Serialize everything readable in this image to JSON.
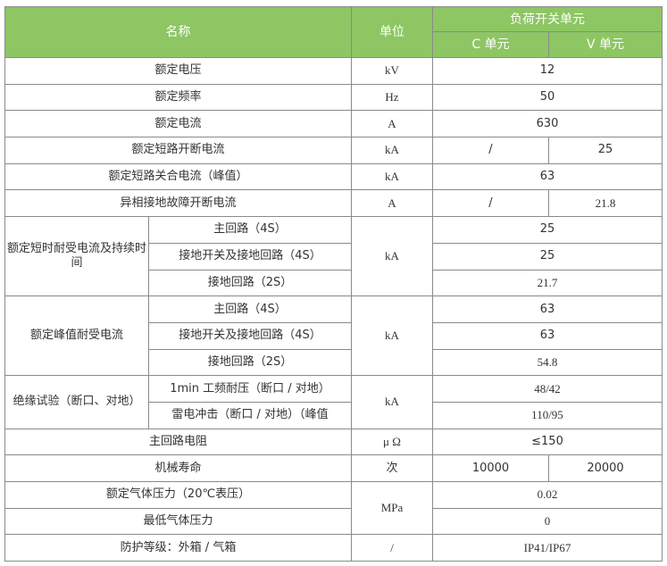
{
  "header": {
    "name": "名称",
    "unit": "单位",
    "group": "负荷开关单元",
    "c_unit": "C 单元",
    "v_unit": "V 单元"
  },
  "rows": {
    "r1": {
      "name": "额定电压",
      "unit": "kV",
      "value": "12"
    },
    "r2": {
      "name": "额定频率",
      "unit": "Hz",
      "value": "50"
    },
    "r3": {
      "name": "额定电流",
      "unit": "A",
      "value": "630"
    },
    "r4": {
      "name": "额定短路开断电流",
      "unit": "kA",
      "c": "/",
      "v": "25"
    },
    "r5": {
      "name": "额定短路关合电流（峰值）",
      "unit": "kA",
      "value": "63"
    },
    "r6": {
      "name": "异相接地故障开断电流",
      "unit": "A",
      "c": "/",
      "v": "21.8"
    },
    "g1": {
      "name": "额定短时耐受电流及持续时间",
      "unit": "kA",
      "sub": [
        {
          "name": "主回路（4S）",
          "value": "25"
        },
        {
          "name": "接地开关及接地回路（4S）",
          "value": "25"
        },
        {
          "name": "接地回路（2S）",
          "value": "21.7"
        }
      ]
    },
    "g2": {
      "name": "额定峰值耐受电流",
      "unit": "kA",
      "sub": [
        {
          "name": "主回路（4S）",
          "value": "63"
        },
        {
          "name": "接地开关及接地回路（4S）",
          "value": "63"
        },
        {
          "name": "接地回路（2S）",
          "value": "54.8"
        }
      ]
    },
    "g3": {
      "name": "绝缘试验（断口、对地）",
      "unit": "kA",
      "sub": [
        {
          "name": "1min 工频耐压（断口 / 对地）",
          "value": "48/42"
        },
        {
          "name": "雷电冲击（断口 / 对地）（峰值",
          "value": "110/95"
        }
      ]
    },
    "r7": {
      "name": "主回路电阻",
      "unit": "μ Ω",
      "value": "≤150"
    },
    "r8": {
      "name": "机械寿命",
      "unit": "次",
      "c": "10000",
      "v": "20000"
    },
    "g4": {
      "unit": "MPa",
      "sub": [
        {
          "name": "额定气体压力（20℃表压）",
          "value": "0.02"
        },
        {
          "name": "最低气体压力",
          "value": "0"
        }
      ]
    },
    "r9": {
      "name": "防护等级：外箱 / 气箱",
      "unit": "/",
      "value": "IP41/IP67"
    }
  },
  "colors": {
    "header_bg": "#8dc663",
    "border": "#8a8a8a"
  }
}
